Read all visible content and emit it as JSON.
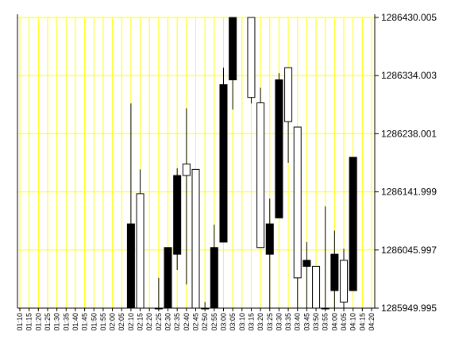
{
  "chart_data": {
    "type": "candlestick",
    "categories": [
      "01:10",
      "01:15",
      "01:20",
      "01:25",
      "01:30",
      "01:35",
      "01:40",
      "01:45",
      "01:50",
      "01:55",
      "02:00",
      "02:05",
      "02:10",
      "02:15",
      "02:20",
      "02:25",
      "02:30",
      "02:35",
      "02:40",
      "02:45",
      "02:50",
      "02:55",
      "03:00",
      "03:05",
      "03:10",
      "03:15",
      "03:20",
      "03:25",
      "03:30",
      "03:35",
      "03:40",
      "03:45",
      "03:50",
      "03:55",
      "04:00",
      "04:05",
      "04:10",
      "04:15",
      "04:20"
    ],
    "open": [
      null,
      null,
      null,
      null,
      null,
      null,
      null,
      null,
      null,
      null,
      null,
      null,
      1286089,
      1285950,
      null,
      1285950,
      1286050,
      1286169,
      1286169,
      1285950,
      1285950,
      1286050,
      1286319,
      1286430,
      null,
      1286298,
      1286050,
      1286089,
      1286327,
      1286258,
      1286000,
      1286029,
      1285950,
      1285950,
      1286039,
      1285960,
      1286199,
      null,
      null
    ],
    "high": [
      null,
      null,
      null,
      null,
      null,
      null,
      null,
      null,
      null,
      null,
      null,
      null,
      1286288,
      1286179,
      null,
      1286000,
      1286050,
      1286181,
      1286280,
      1286179,
      1285960,
      1286088,
      1286347,
      1286430,
      null,
      1286430,
      1286314,
      1286131,
      1286338,
      1286347,
      1286249,
      1286059,
      1286019,
      1286118,
      1286078,
      1286048,
      1286199,
      null,
      null
    ],
    "low": [
      null,
      null,
      null,
      null,
      null,
      null,
      null,
      null,
      null,
      null,
      null,
      null,
      1285950,
      1285950,
      null,
      1285950,
      1285950,
      1286013,
      1285989,
      1285950,
      1285950,
      1285950,
      1286059,
      1286278,
      null,
      1286288,
      1286050,
      1285950,
      1286099,
      1286190,
      1285950,
      1285950,
      1285950,
      1285950,
      1285950,
      1285950,
      1285979,
      null,
      null
    ],
    "close": [
      null,
      null,
      null,
      null,
      null,
      null,
      null,
      null,
      null,
      null,
      null,
      null,
      1285950,
      1286139,
      null,
      1285950,
      1285950,
      1286039,
      1286188,
      1286179,
      1285950,
      1285950,
      1286059,
      1286327,
      null,
      1286430,
      1286289,
      1286039,
      1286099,
      1286347,
      1286249,
      1286019,
      1286019,
      1285950,
      1285979,
      1286029,
      1285979,
      null,
      null
    ],
    "ylim": [
      1285949.995,
      1286430.005
    ],
    "yticks": [
      1285949.995,
      1286045.997,
      1286141.999,
      1286238.001,
      1286334.003,
      1286430.005
    ],
    "grid": true,
    "grid_color": "#ffff00",
    "up_color": "#ffffff",
    "down_color": "#000000"
  }
}
